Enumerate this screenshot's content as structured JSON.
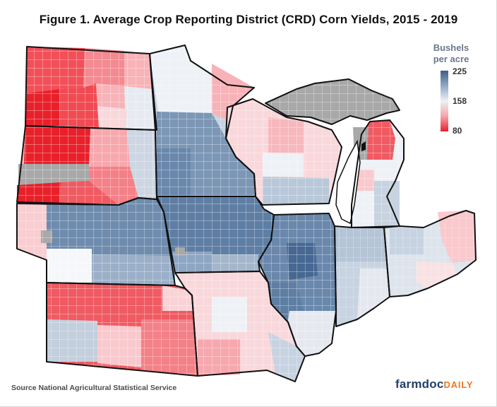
{
  "title": "Figure 1. Average Crop Reporting District (CRD) Corn Yields, 2015 - 2019",
  "legend": {
    "title_line1": "Bushels",
    "title_line2": "per acre",
    "max": "225",
    "mid": "158",
    "min": "80",
    "colors": {
      "high": "#3f5f85",
      "mid": "#eef1f5",
      "low": "#e8202a",
      "no_data": "#a9a9a9"
    }
  },
  "source": "Source National Agricultural Statistical Service",
  "logo": {
    "part1": "farmdoc",
    "part2": "DAILY"
  },
  "states": {
    "North Dakota": "low",
    "South Dakota": "low-mixed",
    "Nebraska": "high-mixed",
    "Kansas": "low-mixed",
    "Minnesota": "high-mixed",
    "Iowa": "high",
    "Missouri": "mid-low",
    "Wisconsin": "mid-low",
    "Illinois": "high",
    "Michigan": "mid-low",
    "Indiana": "mid-high",
    "Ohio": "mid"
  }
}
